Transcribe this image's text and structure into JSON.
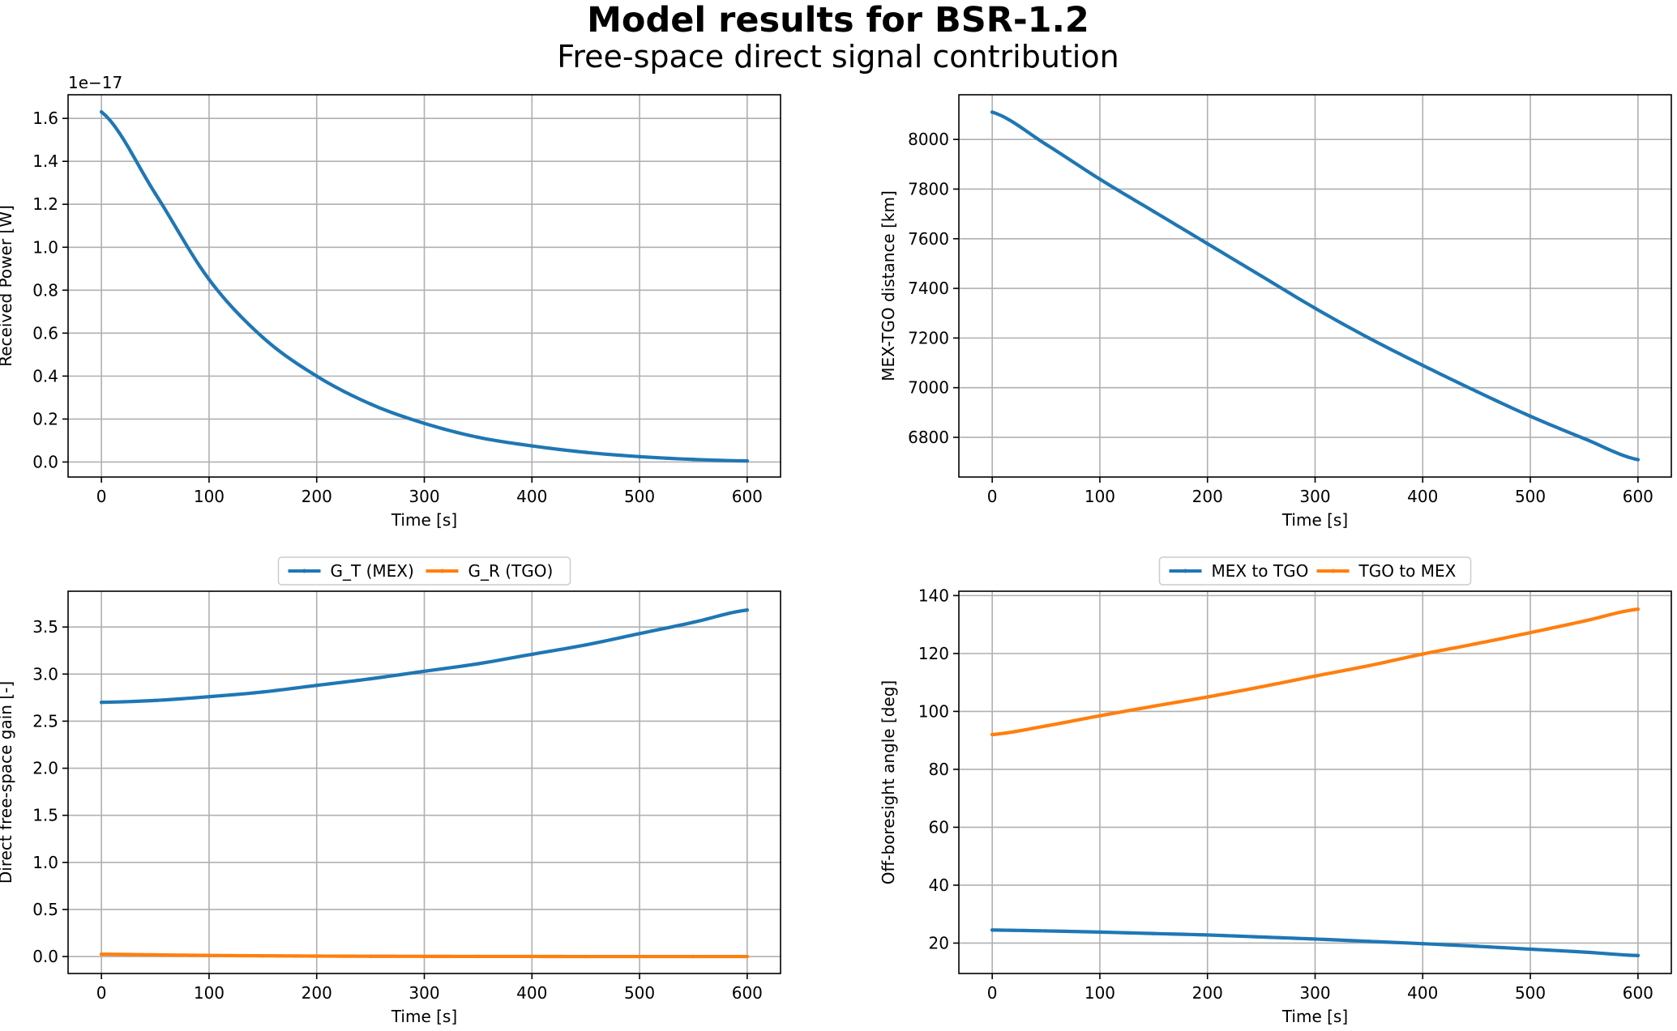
{
  "figure": {
    "title": "Model results for BSR-1.2",
    "subtitle": "Free-space direct signal contribution"
  },
  "colors": {
    "series1": "#1f77b4",
    "series2": "#ff7f0e",
    "grid": "#b0b0b0",
    "axes": "#000000"
  },
  "chart_data": [
    {
      "type": "line",
      "xlabel": "Time [s]",
      "ylabel": "Received Power [W]",
      "offset_text": "1e−17",
      "xlim": [
        -31,
        631
      ],
      "ylim": [
        -0.07,
        1.71
      ],
      "xticks": [
        0,
        100,
        200,
        300,
        400,
        500,
        600
      ],
      "xtick_labels": [
        "0",
        "100",
        "200",
        "300",
        "400",
        "500",
        "600"
      ],
      "yticks": [
        0,
        0.2,
        0.4,
        0.6,
        0.8,
        1.0,
        1.2,
        1.4,
        1.6
      ],
      "ytick_labels": [
        "0.0",
        "0.2",
        "0.4",
        "0.6",
        "0.8",
        "1.0",
        "1.2",
        "1.4",
        "1.6"
      ],
      "grid": true,
      "legend": null,
      "series": [
        {
          "color": "#1f77b4",
          "x": [
            0,
            50,
            100,
            150,
            200,
            250,
            300,
            350,
            400,
            450,
            500,
            550,
            600
          ],
          "y": [
            1.63,
            1.25,
            0.85,
            0.58,
            0.4,
            0.27,
            0.18,
            0.115,
            0.075,
            0.045,
            0.025,
            0.012,
            0.005
          ]
        }
      ]
    },
    {
      "type": "line",
      "xlabel": "Time [s]",
      "ylabel": "MEX-TGO distance [km]",
      "xlim": [
        -31,
        631
      ],
      "ylim": [
        6640,
        8180
      ],
      "xticks": [
        0,
        100,
        200,
        300,
        400,
        500,
        600
      ],
      "xtick_labels": [
        "0",
        "100",
        "200",
        "300",
        "400",
        "500",
        "600"
      ],
      "yticks": [
        6800,
        7000,
        7200,
        7400,
        7600,
        7800,
        8000
      ],
      "ytick_labels": [
        "6800",
        "7000",
        "7200",
        "7400",
        "7600",
        "7800",
        "8000"
      ],
      "grid": true,
      "legend": null,
      "series": [
        {
          "color": "#1f77b4",
          "x": [
            0,
            50,
            100,
            150,
            200,
            250,
            300,
            350,
            400,
            450,
            500,
            550,
            600
          ],
          "y": [
            8110,
            7980,
            7840,
            7710,
            7580,
            7450,
            7320,
            7200,
            7090,
            6985,
            6885,
            6795,
            6710
          ]
        }
      ]
    },
    {
      "type": "line",
      "xlabel": "Time [s]",
      "ylabel": "Direct free-space gain [-]",
      "xlim": [
        -31,
        631
      ],
      "ylim": [
        -0.18,
        3.88
      ],
      "xticks": [
        0,
        100,
        200,
        300,
        400,
        500,
        600
      ],
      "xtick_labels": [
        "0",
        "100",
        "200",
        "300",
        "400",
        "500",
        "600"
      ],
      "yticks": [
        0,
        0.5,
        1.0,
        1.5,
        2.0,
        2.5,
        3.0,
        3.5
      ],
      "ytick_labels": [
        "0.0",
        "0.5",
        "1.0",
        "1.5",
        "2.0",
        "2.5",
        "3.0",
        "3.5"
      ],
      "grid": true,
      "legend": "upper center (outside)",
      "series": [
        {
          "name": "G_T (MEX)",
          "color": "#1f77b4",
          "x": [
            0,
            50,
            100,
            150,
            200,
            250,
            300,
            350,
            400,
            450,
            500,
            550,
            600
          ],
          "y": [
            2.7,
            2.72,
            2.76,
            2.81,
            2.88,
            2.95,
            3.03,
            3.11,
            3.21,
            3.31,
            3.43,
            3.55,
            3.68
          ]
        },
        {
          "name": "G_R (TGO)",
          "color": "#ff7f0e",
          "x": [
            0,
            50,
            100,
            150,
            200,
            250,
            300,
            350,
            400,
            450,
            500,
            550,
            600
          ],
          "y": [
            0.025,
            0.018,
            0.012,
            0.008,
            0.005,
            0.003,
            0.002,
            0.001,
            0.001,
            0.0,
            0.0,
            0.0,
            0.0
          ]
        }
      ]
    },
    {
      "type": "line",
      "xlabel": "Time [s]",
      "ylabel": "Off-boresight angle [deg]",
      "xlim": [
        -31,
        631
      ],
      "ylim": [
        9.5,
        141.5
      ],
      "xticks": [
        0,
        100,
        200,
        300,
        400,
        500,
        600
      ],
      "xtick_labels": [
        "0",
        "100",
        "200",
        "300",
        "400",
        "500",
        "600"
      ],
      "yticks": [
        20,
        40,
        60,
        80,
        100,
        120,
        140
      ],
      "ytick_labels": [
        "20",
        "40",
        "60",
        "80",
        "100",
        "120",
        "140"
      ],
      "grid": true,
      "legend": "upper center (outside)",
      "series": [
        {
          "name": "MEX to TGO",
          "color": "#1f77b4",
          "x": [
            0,
            50,
            100,
            150,
            200,
            250,
            300,
            350,
            400,
            450,
            500,
            550,
            600
          ],
          "y": [
            24.5,
            24.2,
            23.8,
            23.3,
            22.8,
            22.1,
            21.4,
            20.6,
            19.8,
            18.9,
            17.9,
            16.9,
            15.7
          ]
        },
        {
          "name": "TGO to MEX",
          "color": "#ff7f0e",
          "x": [
            0,
            50,
            100,
            150,
            200,
            250,
            300,
            350,
            400,
            450,
            500,
            550,
            600
          ],
          "y": [
            92.0,
            95.0,
            98.5,
            101.8,
            105.0,
            108.5,
            112.2,
            115.8,
            119.8,
            123.4,
            127.2,
            131.2,
            135.3
          ]
        }
      ]
    }
  ]
}
